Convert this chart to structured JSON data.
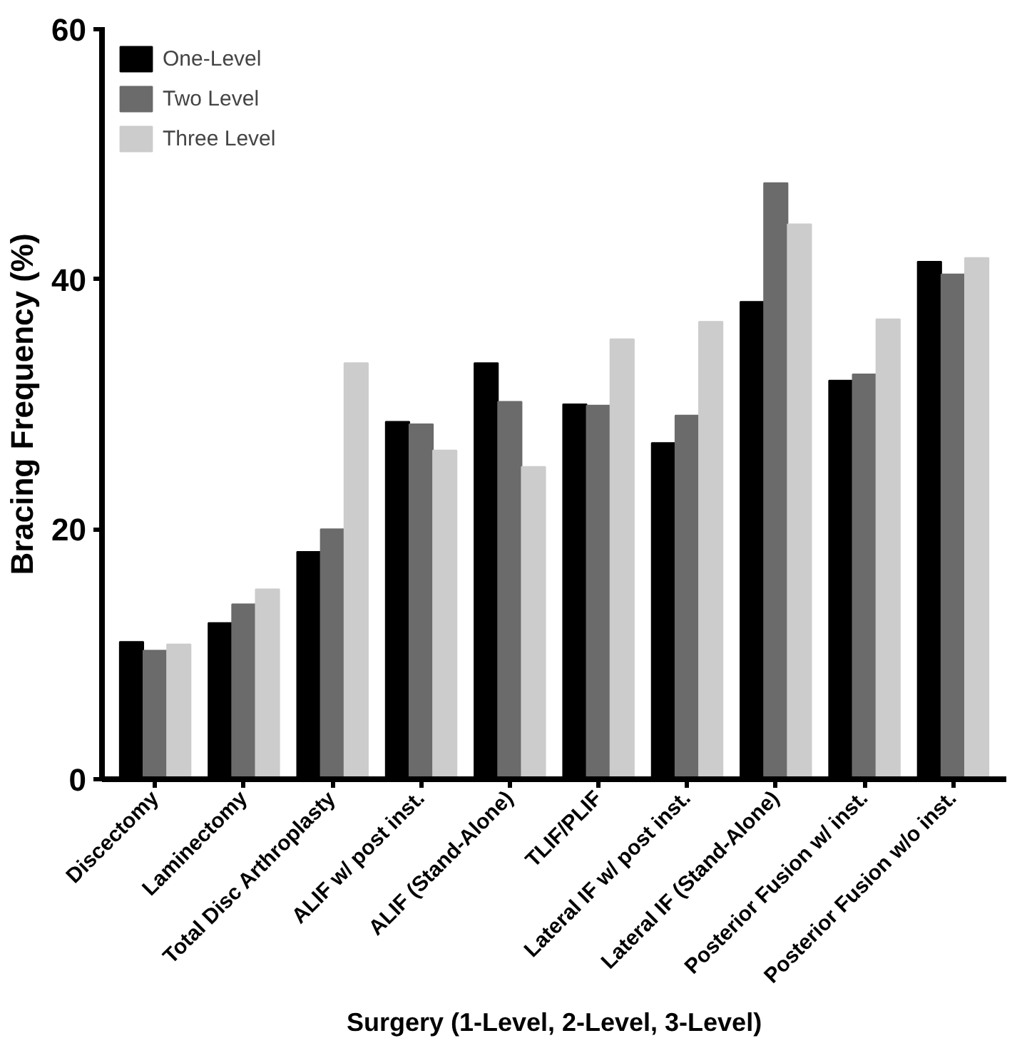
{
  "chart_data": {
    "type": "bar",
    "xlabel": "Surgery (1-Level, 2-Level, 3-Level)",
    "ylabel": "Bracing Frequency (%)",
    "categories": [
      "Discectomy",
      "Laminectomy",
      "Total Disc Arthroplasty",
      "ALIF w/ post inst.",
      "ALIF (Stand-Alone)",
      "TLIF/PLIF",
      "Lateral IF w/ post inst.",
      "Lateral IF (Stand-Alone)",
      "Posterior Fusion w/ inst.",
      "Posterior Fusion w/o inst."
    ],
    "series": [
      {
        "name": "One-Level",
        "color": "#000000",
        "values": [
          11,
          12.5,
          18.2,
          28.6,
          33.3,
          30,
          26.9,
          38.2,
          31.9,
          41.4
        ]
      },
      {
        "name": "Two Level",
        "color": "#6b6b6b",
        "values": [
          10.3,
          14,
          20,
          28.4,
          30.2,
          29.9,
          29.1,
          47.7,
          32.4,
          40.4
        ]
      },
      {
        "name": "Three Level",
        "color": "#cccccc",
        "values": [
          10.8,
          15.2,
          33.3,
          26.3,
          25,
          35.2,
          36.6,
          44.4,
          36.8,
          41.7
        ]
      }
    ],
    "ylim": [
      0,
      60
    ],
    "yticks": [
      0,
      20,
      40,
      60
    ],
    "grid": false,
    "legend": "top left"
  }
}
